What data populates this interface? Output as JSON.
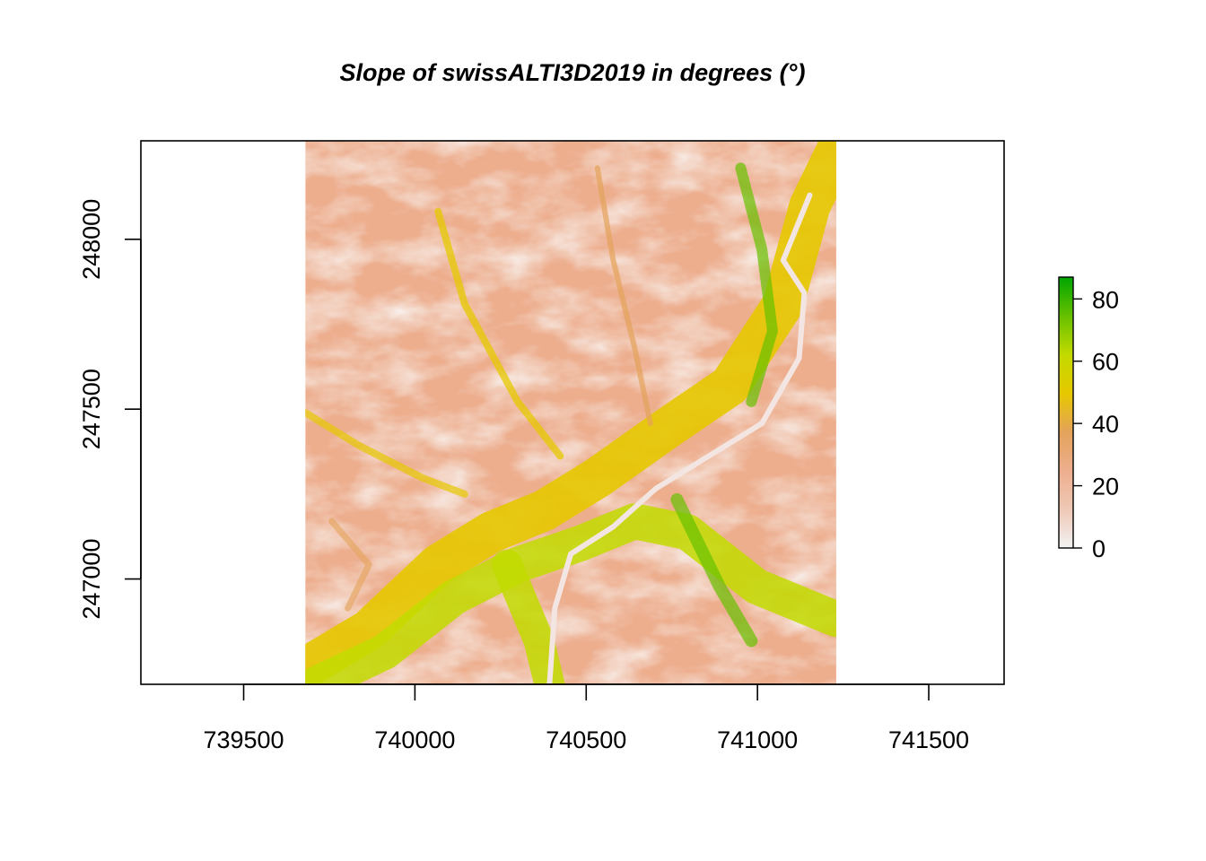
{
  "chart_data": {
    "type": "heatmap",
    "title": "Slope of swissALTI3D2019 in degrees (°)",
    "xlabel": "",
    "ylabel": "",
    "xlim": [
      739200,
      741720
    ],
    "ylim": [
      246690,
      248290
    ],
    "raster_extent": {
      "x": [
        739680,
        741230
      ],
      "y": [
        246690,
        248290
      ]
    },
    "x_ticks": [
      739500,
      740000,
      740500,
      741000,
      741500
    ],
    "x_tick_labels": [
      "739500",
      "740000",
      "740500",
      "741000",
      "741500"
    ],
    "y_ticks": [
      247000,
      247500,
      248000
    ],
    "y_tick_labels": [
      "247000",
      "247500",
      "248000"
    ],
    "legend": {
      "placement": "right",
      "range": [
        0,
        87
      ],
      "ticks": [
        0,
        20,
        40,
        60,
        80
      ],
      "tick_labels": [
        "0",
        "20",
        "40",
        "60",
        "80"
      ],
      "colors": [
        "#F2F2F2",
        "#EFC8B6",
        "#EDAE8E",
        "#E4A35A",
        "#E6C800",
        "#C2DA00",
        "#66C000",
        "#00A600"
      ]
    },
    "grid": false
  }
}
